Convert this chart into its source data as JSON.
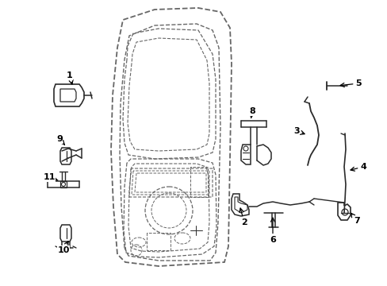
{
  "background_color": "#ffffff",
  "line_color": "#2a2a2a",
  "dashed_color": "#666666",
  "label_color": "#000000",
  "figsize": [
    4.89,
    3.6
  ],
  "dpi": 100
}
